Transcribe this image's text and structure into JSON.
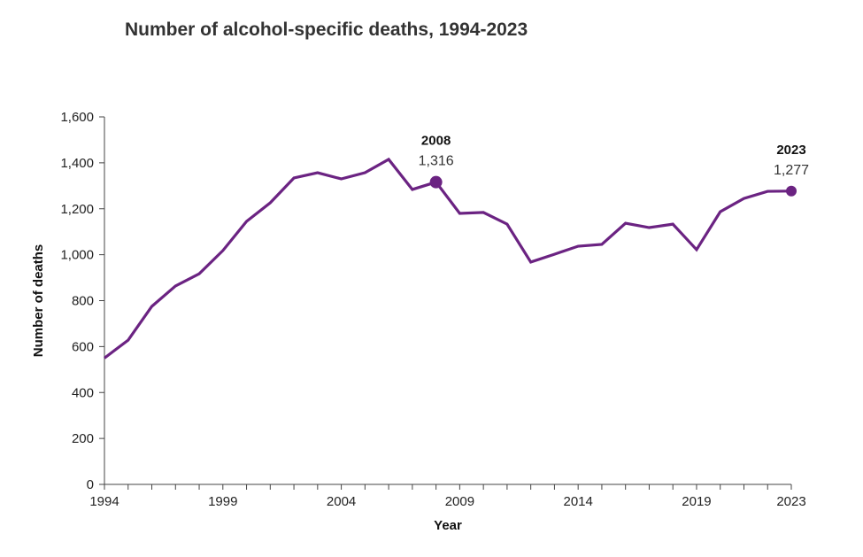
{
  "chart_data": {
    "type": "line",
    "title": "Number of alcohol-specific deaths, 1994-2023",
    "xlabel": "Year",
    "ylabel": "Number of deaths",
    "xlim": [
      1994,
      2023
    ],
    "ylim": [
      0,
      1600
    ],
    "grid": false,
    "x_ticks": [
      "1994",
      "1999",
      "2004",
      "2009",
      "2014",
      "2019",
      "2023"
    ],
    "y_ticks": [
      "0",
      "200",
      "400",
      "600",
      "800",
      "1,000",
      "1,200",
      "1,400",
      "1,600"
    ],
    "series": [
      {
        "name": "Alcohol-specific deaths",
        "color": "#6b2382",
        "x": [
          1994,
          1995,
          1996,
          1997,
          1998,
          1999,
          2000,
          2001,
          2002,
          2003,
          2004,
          2005,
          2006,
          2007,
          2008,
          2009,
          2010,
          2011,
          2012,
          2013,
          2014,
          2015,
          2016,
          2017,
          2018,
          2019,
          2020,
          2021,
          2022,
          2023
        ],
        "values": [
          550,
          628,
          775,
          864,
          917,
          1018,
          1145,
          1226,
          1334,
          1357,
          1330,
          1357,
          1415,
          1284,
          1316,
          1180,
          1184,
          1133,
          968,
          1002,
          1037,
          1045,
          1137,
          1118,
          1133,
          1022,
          1187,
          1245,
          1276,
          1277
        ]
      }
    ],
    "annotations": [
      {
        "year": "2008",
        "value_label": "1,316",
        "x": 2008,
        "y": 1316
      },
      {
        "year": "2023",
        "value_label": "1,277",
        "x": 2023,
        "y": 1277
      }
    ]
  }
}
